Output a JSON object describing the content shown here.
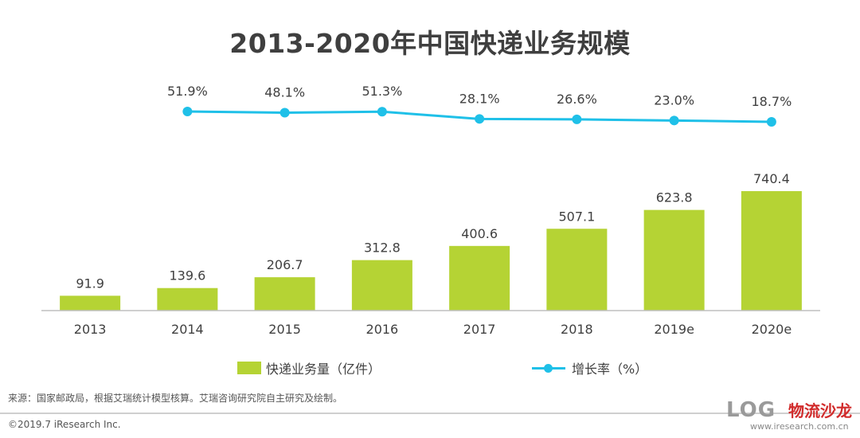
{
  "chart_data": {
    "type": "bar",
    "title": "2013-2020年中国快递业务规模",
    "categories": [
      "2013",
      "2014",
      "2015",
      "2016",
      "2017",
      "2018",
      "2019e",
      "2020e"
    ],
    "bar_series": {
      "name": "快递业务量（亿件）",
      "values": [
        91.9,
        139.6,
        206.7,
        312.8,
        400.6,
        507.1,
        623.8,
        740.4
      ],
      "labels": [
        "91.9",
        "139.6",
        "206.7",
        "312.8",
        "400.6",
        "507.1",
        "623.8",
        "740.4"
      ],
      "color": "#b5d334"
    },
    "line_series": {
      "name": "增长率（%）",
      "categories": [
        "2014",
        "2015",
        "2016",
        "2017",
        "2018",
        "2019e",
        "2020e"
      ],
      "values": [
        51.9,
        48.1,
        51.3,
        28.1,
        26.6,
        23.0,
        18.7
      ],
      "labels": [
        "51.9%",
        "48.1%",
        "51.3%",
        "28.1%",
        "26.6%",
        "23.0%",
        "18.7%"
      ],
      "color": "#1fc0e8"
    },
    "ylim": [
      0,
      800
    ],
    "rate_ylim": [
      0,
      60
    ],
    "grid": false,
    "legend": "bottom",
    "axis_color": "#bfbfbf"
  },
  "source_note": "来源：国家邮政局，根据艾瑞统计模型核算。艾瑞咨询研究院自主研究及绘制。",
  "copyright": "©2019.7 iResearch Inc.",
  "watermark": {
    "text": "LOG",
    "brand": "物流沙龙",
    "url": "www.iresearch.com.cn"
  }
}
